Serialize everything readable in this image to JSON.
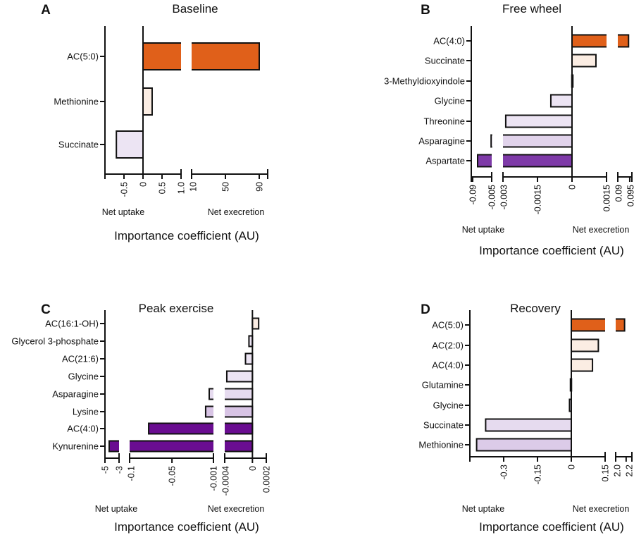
{
  "chart_data": [
    {
      "type": "bar",
      "orientation": "horizontal",
      "panel_letter": "A",
      "title": "Baseline",
      "xlabel": "Importance coefficient (AU)",
      "left_annotation": "Net uptake",
      "right_annotation": "Net execretion",
      "broken_axis_segments": [
        {
          "range": [
            -1.0,
            1.0
          ],
          "ticks": [
            -0.5,
            0,
            0.5,
            1.0
          ],
          "tick_labels": [
            "-0.5",
            "0",
            "0.5",
            "1.0"
          ]
        },
        {
          "range": [
            10,
            100
          ],
          "ticks": [
            10,
            50,
            90
          ],
          "tick_labels": [
            "10",
            "50",
            "90"
          ]
        }
      ],
      "categories": [
        "AC(5:0)",
        "Methionine",
        "Succinate"
      ],
      "values": [
        90,
        0.24,
        -0.7
      ],
      "colors": [
        "#E0601A",
        "#FBEDE3",
        "#ECE4F3"
      ]
    },
    {
      "type": "bar",
      "orientation": "horizontal",
      "panel_letter": "B",
      "title": "Free wheel",
      "xlabel": "Importance coefficient (AU)",
      "left_annotation": "Net uptake",
      "right_annotation": "Net execretion",
      "broken_axis_segments": [
        {
          "range": [
            -0.0963,
            -0.005
          ],
          "ticks": [
            -0.09,
            -0.005
          ],
          "tick_labels": [
            "-0.09",
            "-0.005"
          ]
        },
        {
          "range": [
            -0.003,
            0.0015
          ],
          "ticks": [
            -0.003,
            -0.0015,
            0,
            0.0015
          ],
          "tick_labels": [
            "-0.003",
            "-0.0015",
            "0",
            "0.0015"
          ]
        },
        {
          "range": [
            0.09,
            0.0959
          ],
          "ticks": [
            0.09,
            0.095
          ],
          "tick_labels": [
            "0.09",
            "0.095"
          ]
        }
      ],
      "categories": [
        "AC(4:0)",
        "Succinate",
        "3-Methyldioxyindole",
        "Glycine",
        "Threonine",
        "Asparagine",
        "Aspartate"
      ],
      "values": [
        0.0945,
        0.00104,
        3e-05,
        -0.00092,
        -0.00288,
        -0.0055,
        -0.068
      ],
      "colors": [
        "#E0601A",
        "#FBEDE3",
        "#FBEDE3",
        "#ECE4F3",
        "#ECE4F3",
        "#E1D3EB",
        "#7E3AA8"
      ]
    },
    {
      "type": "bar",
      "orientation": "horizontal",
      "panel_letter": "C",
      "title": "Peak exercise",
      "xlabel": "Importance coefficient (AU)",
      "left_annotation": "Net uptake",
      "right_annotation": "Net execretion",
      "broken_axis_segments": [
        {
          "range": [
            -5,
            -3
          ],
          "ticks": [
            -5,
            -3
          ],
          "tick_labels": [
            "-5",
            "-3"
          ]
        },
        {
          "range": [
            -0.1,
            -0.001
          ],
          "ticks": [
            -0.1,
            -0.05,
            -0.001
          ],
          "tick_labels": [
            "-0.1",
            "-0.05",
            "-0.001"
          ]
        },
        {
          "range": [
            -0.0004,
            0.0002
          ],
          "ticks": [
            -0.0004,
            0,
            0.0002
          ],
          "tick_labels": [
            "-0.0004",
            "0",
            "0.0002"
          ]
        }
      ],
      "categories": [
        "AC(16:1-OH)",
        "Glycerol 3-phosphate",
        "AC(21:6)",
        "Glycine",
        "Asparagine",
        "Lysine",
        "AC(4:0)",
        "Kynurenine"
      ],
      "values": [
        9e-05,
        -5e-05,
        -0.0001,
        -0.00037,
        -0.006,
        -0.0102,
        -0.0775,
        -4.4
      ],
      "colors": [
        "#FBEDE3",
        "#ECE4F3",
        "#ECE4F3",
        "#ECE4F3",
        "#E6DBEF",
        "#D8C4E5",
        "#6A0D91",
        "#6A0D91"
      ]
    },
    {
      "type": "bar",
      "orientation": "horizontal",
      "panel_letter": "D",
      "title": "Recovery",
      "xlabel": "Importance coefficient (AU)",
      "left_annotation": "Net uptake",
      "right_annotation": "Net execretion",
      "broken_axis_segments": [
        {
          "range": [
            -0.45,
            0.15
          ],
          "ticks": [
            -0.3,
            -0.15,
            0,
            0.15
          ],
          "tick_labels": [
            "-0.3",
            "-0.15",
            "0",
            "0.15"
          ]
        },
        {
          "range": [
            2.0,
            2.31
          ],
          "ticks": [
            2.0,
            2.2
          ],
          "tick_labels": [
            "2.0",
            "2.2"
          ]
        }
      ],
      "categories": [
        "AC(5:0)",
        "AC(2:0)",
        "AC(4:0)",
        "Glutamine",
        "Glycine",
        "Succinate",
        "Methionine"
      ],
      "values": [
        2.17,
        0.12,
        0.094,
        -0.003,
        -0.008,
        -0.38,
        -0.42
      ],
      "colors": [
        "#E0601A",
        "#FBEDE3",
        "#FBEDE3",
        "#ECE4F3",
        "#ECE4F3",
        "#E6DBEF",
        "#DCCBE8"
      ]
    }
  ]
}
